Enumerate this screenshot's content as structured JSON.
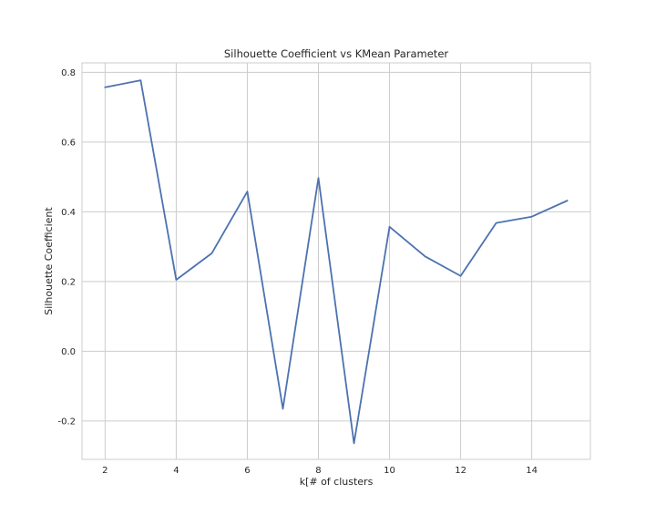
{
  "chart_data": {
    "type": "line",
    "title": "Silhouette Coefficient vs KMean Parameter",
    "xlabel": "k[# of clusters",
    "ylabel": "Silhouette Coefficient",
    "x": [
      2,
      3,
      4,
      5,
      6,
      7,
      8,
      9,
      10,
      11,
      12,
      13,
      14,
      15
    ],
    "series": [
      {
        "values": [
          0.757,
          0.777,
          0.205,
          0.281,
          0.458,
          -0.165,
          0.497,
          -0.264,
          0.357,
          0.272,
          0.216,
          0.368,
          0.386,
          0.432
        ],
        "color": "#4c72b0"
      }
    ],
    "xlim": [
      1.35,
      15.65
    ],
    "ylim": [
      -0.31,
      0.827
    ],
    "xticks": [
      2,
      4,
      6,
      8,
      10,
      12,
      14
    ],
    "xtick_labels": [
      "2",
      "4",
      "6",
      "8",
      "10",
      "12",
      "14"
    ],
    "yticks": [
      -0.2,
      0.0,
      0.2,
      0.4,
      0.6,
      0.8
    ],
    "ytick_labels": [
      "-0.2",
      "0.0",
      "0.2",
      "0.4",
      "0.6",
      "0.8"
    ],
    "grid": true,
    "style": "seaborn-whitegrid"
  }
}
